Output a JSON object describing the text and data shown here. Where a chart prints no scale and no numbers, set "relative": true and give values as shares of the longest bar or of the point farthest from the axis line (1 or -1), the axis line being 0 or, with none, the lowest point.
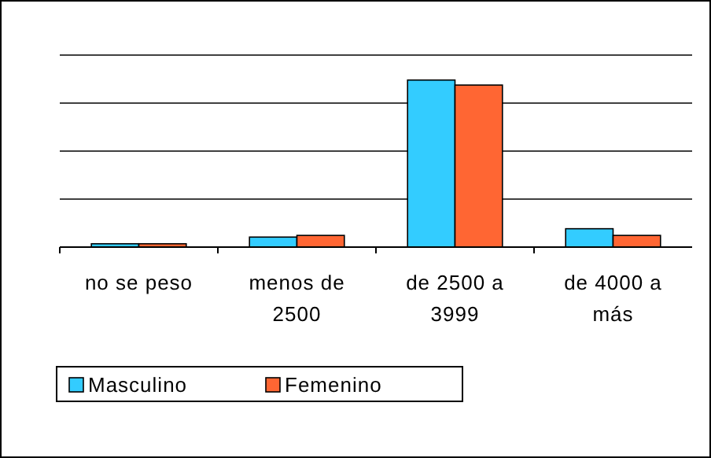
{
  "chart_data": {
    "type": "bar",
    "relative": true,
    "categories": [
      "no se peso",
      "menos de 2500",
      "de 2500 a 3999",
      "de 4000 a más"
    ],
    "series": [
      {
        "name": "Masculino",
        "color": "#33ccff",
        "values": [
          0.02,
          0.06,
          1,
          0.11
        ]
      },
      {
        "name": "Femenino",
        "color": "#ff6633",
        "values": [
          0.02,
          0.07,
          0.97,
          0.07
        ]
      }
    ],
    "grid": "y",
    "legend": "bottom left"
  }
}
